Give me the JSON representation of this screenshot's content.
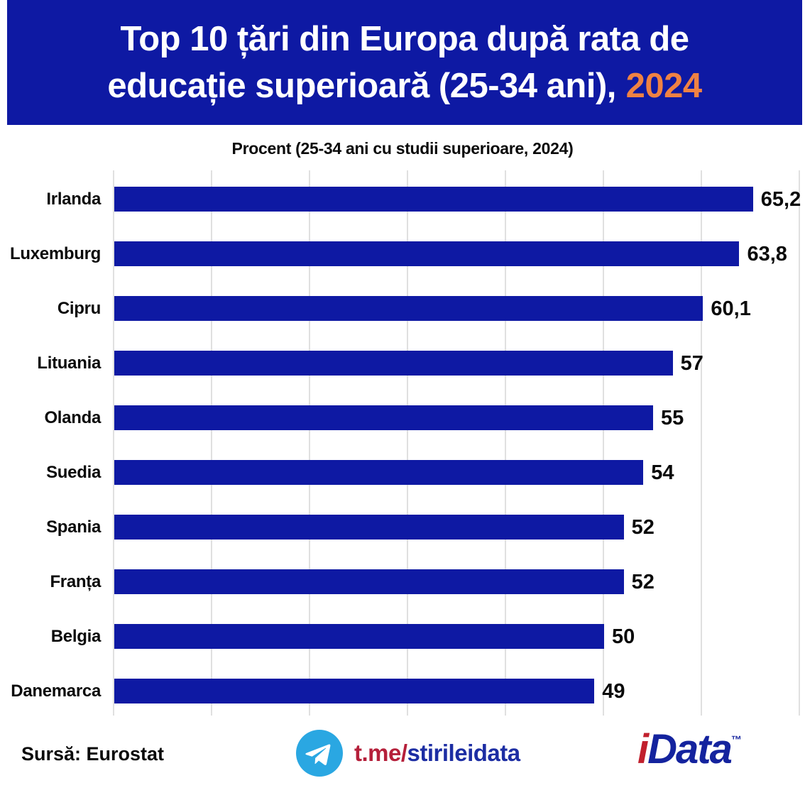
{
  "header": {
    "title_line1": "Top 10 țări din Europa după rata de",
    "title_line2": "educație superioară (25-34 ani),",
    "title_year": "2024",
    "bg_color": "#0e19a3",
    "year_color": "#ef8243"
  },
  "chart_data": {
    "type": "bar",
    "orientation": "horizontal",
    "title": "Procent (25-34 ani cu studii superioare, 2024)",
    "categories": [
      "Irlanda",
      "Luxemburg",
      "Cipru",
      "Lituania",
      "Olanda",
      "Suedia",
      "Spania",
      "Franța",
      "Belgia",
      "Danemarca"
    ],
    "values": [
      65.2,
      63.8,
      60.1,
      57,
      55,
      54,
      52,
      52,
      50,
      49
    ],
    "value_labels": [
      "65,2",
      "63,8",
      "60,1",
      "57",
      "55",
      "54",
      "52",
      "52",
      "50",
      "49"
    ],
    "xlabel": "",
    "ylabel": "",
    "xlim": [
      0,
      70
    ],
    "gridline_step": 10,
    "grid": true,
    "legend": false,
    "bar_color": "#0e19a3",
    "gridline_color": "#e0e0e0"
  },
  "footer": {
    "source": "Sursă: Eurostat",
    "telegram_icon": "telegram-icon",
    "telegram_prefix": "t.me/",
    "telegram_handle": "stirileidata",
    "telegram_prefix_color": "#b51f3a",
    "telegram_handle_color": "#1c2da3",
    "telegram_circle_color": "#2aa7e2",
    "logo_i": "i",
    "logo_rest": "Data",
    "logo_tm": "™",
    "logo_i_color": "#c1202d",
    "logo_rest_color": "#14239e"
  }
}
